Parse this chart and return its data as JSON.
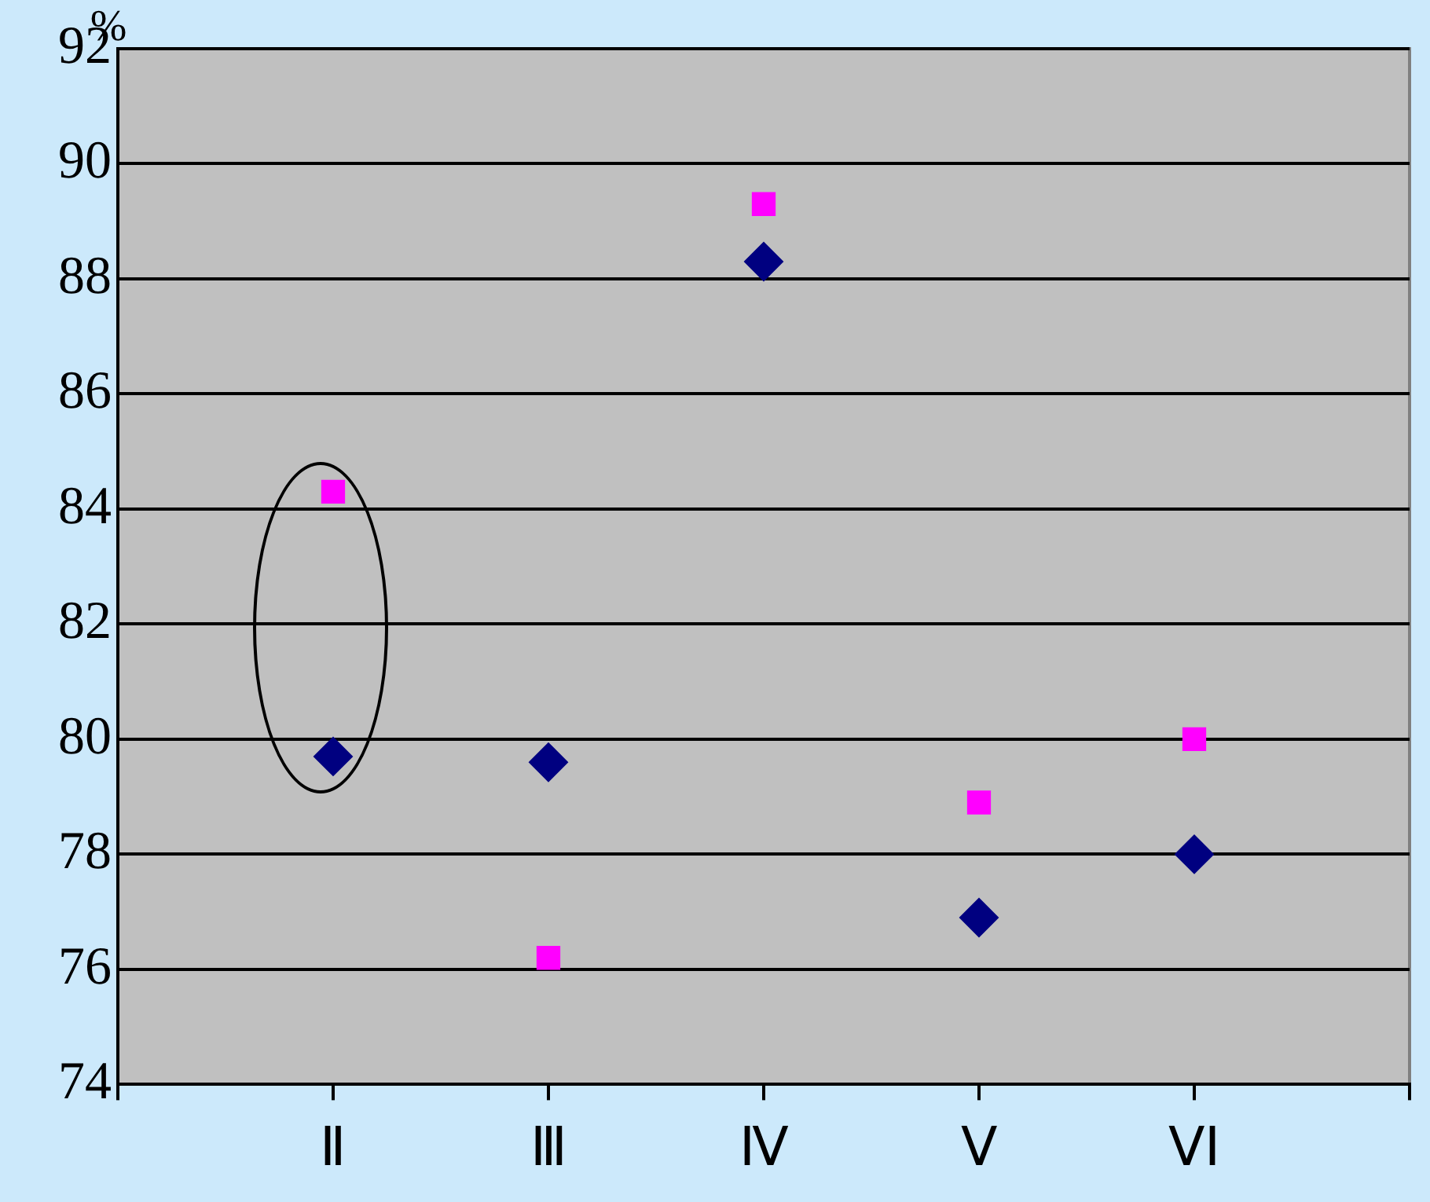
{
  "chart_data": {
    "type": "scatter",
    "ylabel": "%",
    "categories": [
      null,
      "Ⅱ",
      "Ⅲ",
      "Ⅳ",
      "Ⅴ",
      "ⅤⅠ",
      null
    ],
    "series": [
      {
        "color": "#ff00ff",
        "marker": "square",
        "values": [
          null,
          84.3,
          76.2,
          89.3,
          78.9,
          80.0,
          null
        ]
      },
      {
        "color": "#000080",
        "marker": "diamond",
        "values": [
          null,
          79.7,
          79.6,
          88.3,
          76.9,
          78.0,
          null
        ]
      }
    ],
    "ylim": [
      74,
      92
    ],
    "yticks": [
      74,
      76,
      78,
      80,
      82,
      84,
      86,
      88,
      90,
      92
    ],
    "grid": "y",
    "legend": false
  }
}
